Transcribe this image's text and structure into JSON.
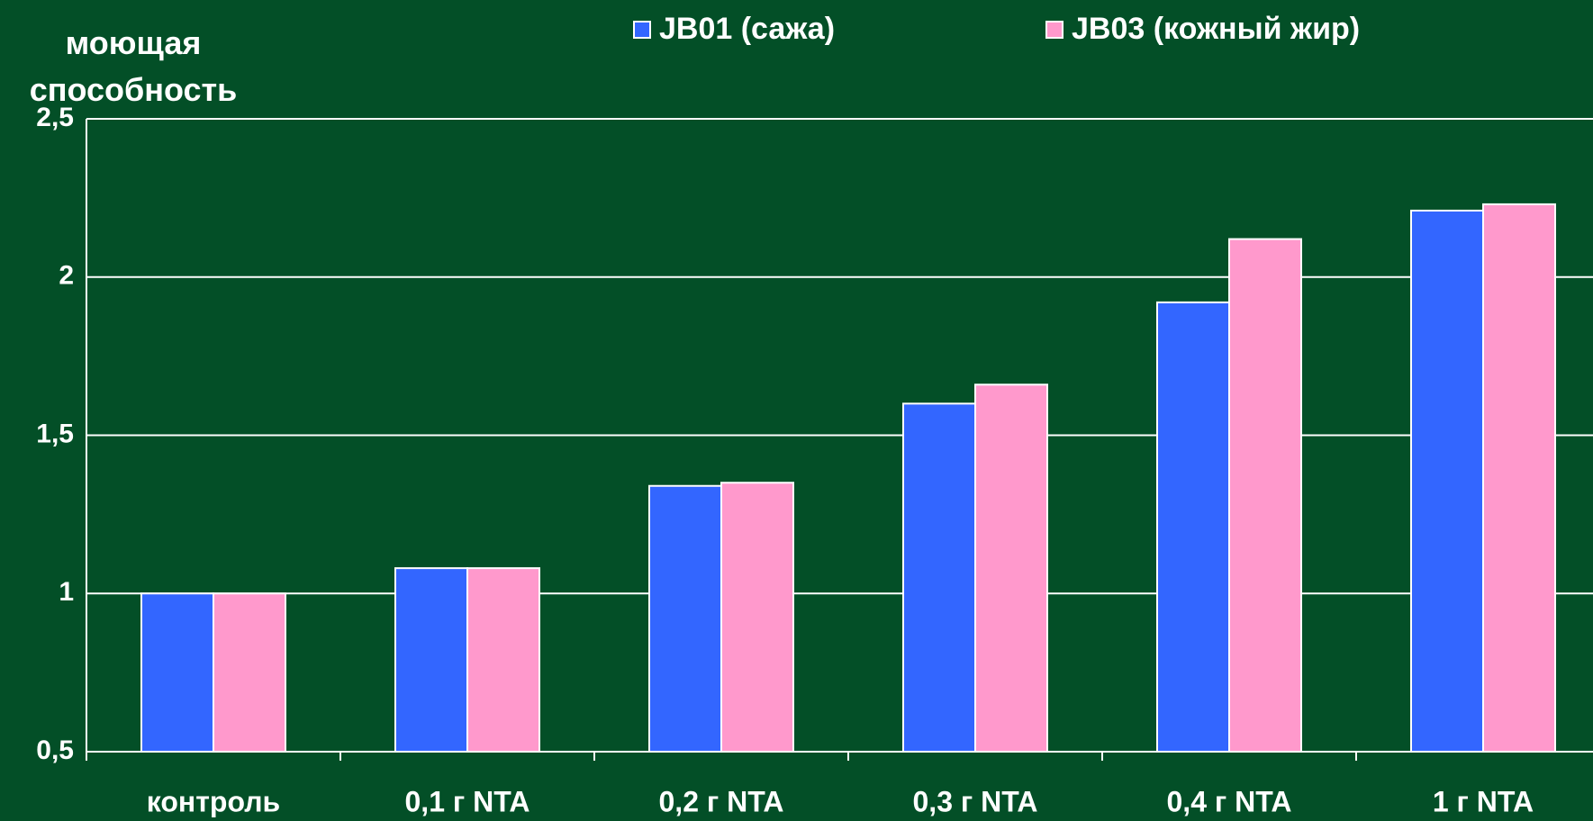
{
  "chart_data": {
    "type": "bar",
    "y_label": "моющая способность",
    "categories": [
      "контроль",
      "0,1 г NTA",
      "0,2 г NTA",
      "0,3 г NTA",
      "0,4 г NTA",
      "1 г NTA"
    ],
    "series": [
      {
        "name": "JB01 (сажа)",
        "color": "#3366ff",
        "values": [
          1,
          1.08,
          1.34,
          1.6,
          1.92,
          2.21
        ]
      },
      {
        "name": "JB03 (кожный жир)",
        "color": "#ff99cc",
        "values": [
          1,
          1.08,
          1.35,
          1.66,
          2.12,
          2.23
        ]
      }
    ],
    "ylim": [
      0.5,
      2.5
    ],
    "yticks": [
      {
        "value": 0.5,
        "label": "0,5"
      },
      1,
      {
        "value": 1.5,
        "label": "1,5"
      },
      2,
      {
        "value": 2.5,
        "label": "2,5"
      }
    ],
    "grid": true
  }
}
